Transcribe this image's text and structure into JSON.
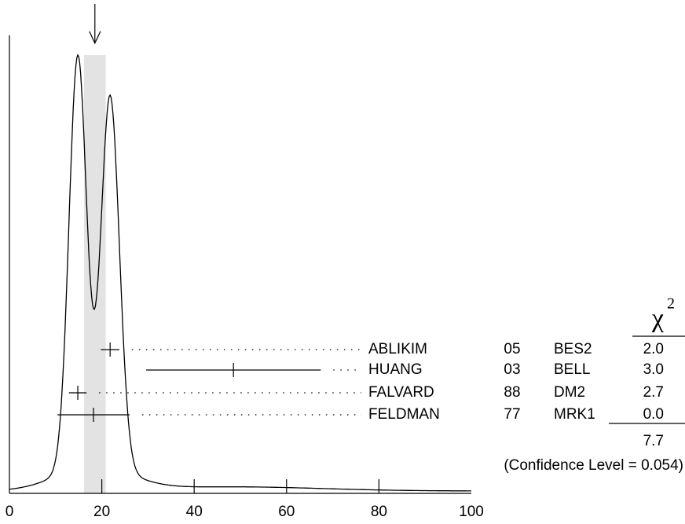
{
  "chart_data": {
    "type": "ideogram",
    "xlim": [
      0,
      100
    ],
    "xticks": [
      0,
      20,
      40,
      60,
      80,
      100
    ],
    "average": {
      "value": 18.5,
      "error": 2.35
    },
    "chi2_header": {
      "symbol": "χ",
      "exponent": "2"
    },
    "measurements": [
      {
        "name": "ABLIKIM",
        "year": "05",
        "experiment": "BES2",
        "value": 21.8,
        "error": 2.0,
        "chi2": "2.0"
      },
      {
        "name": "HUANG",
        "year": "03",
        "experiment": "BELL",
        "value": 48.5,
        "error": 18.9,
        "chi2": "3.0"
      },
      {
        "name": "FALVARD",
        "year": "88",
        "experiment": "DM2",
        "value": 14.8,
        "error": 1.9,
        "chi2": "2.7"
      },
      {
        "name": "FELDMAN",
        "year": "77",
        "experiment": "MRK1",
        "value": 18.2,
        "error": 7.8,
        "chi2": "0.0"
      }
    ],
    "chi2_total": "7.7",
    "confidence": "(Confidence Level = 0.054)"
  }
}
